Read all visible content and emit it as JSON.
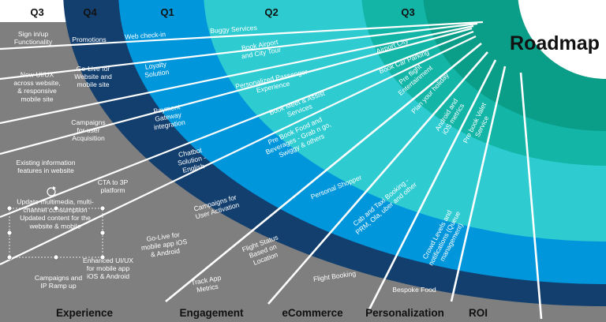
{
  "title": "Roadmap",
  "colors": {
    "band1": "#7f7f7f",
    "band2": "#133f6e",
    "band3": "#0096dc",
    "band4": "#2ecbd1",
    "band5": "#13b5a7",
    "band6": "#0a9d87",
    "separator": "#ffffff",
    "label_text": "#111111"
  },
  "quarters": [
    "Q3",
    "Q4",
    "Q1",
    "Q2",
    "Q3"
  ],
  "categories": [
    "Experience",
    "Engagement",
    "eCommerce",
    "Personalization",
    "ROI"
  ],
  "bands": [
    {
      "quarter": "Q3",
      "items": [
        "Sign in/up\nFunctionality",
        "New UI/UX\nacross website,\n& responsive\nmobile site",
        "Existing information\nfeatures in website",
        "Update multimedia, multi-\nchannel consumption\nUpdated content for the\nwebsite & mobile",
        "Campaigns and\nIP Ramp up"
      ]
    },
    {
      "quarter": "Q4",
      "items": [
        "Promotions",
        "Go-Live for\nWebsite and\nmobile site",
        "Campaigns\nfor user\nAcquisition",
        "CTA to 3P\nplatform",
        "Enhanced UI/UX\nfor mobile app\niOS & Android"
      ]
    },
    {
      "quarter": "Q1",
      "items": [
        "Web check-in",
        "Loyalty\nSolution",
        "Payment\nGateway\nintegration",
        "Chatbot\nSolution -\nEnglish",
        "Campaigns for\nUser Activation",
        "Go-Live for\nmobile app iOS\n& Android",
        "Track App\nMetrics"
      ]
    },
    {
      "quarter": "Q2",
      "items": [
        "Buggy Services",
        "Book Airport\nand City Tour",
        "Personalized Passenger\nExperience",
        "Book Meet & Assist\nServices",
        "Pre Book Food and\nBeverages - Grab n go,\nSwiggy & others",
        "Personal Shopper",
        "Flight Status\nBased on\nLocation",
        "Flight Booking"
      ]
    },
    {
      "quarter": "Q3",
      "items": [
        "Airport City",
        "Book Car Parking",
        "Pre flight\nEntertainment",
        "Plan your holiday",
        "Android and\niOS metrics",
        "Pre book Valet\nService",
        "Cab and Taxi Booking -\nPRM, Ola, uber and other",
        "Crowd Levels and\nnotifications (Queue\nmanagement)",
        "Bespoke Food"
      ]
    }
  ]
}
